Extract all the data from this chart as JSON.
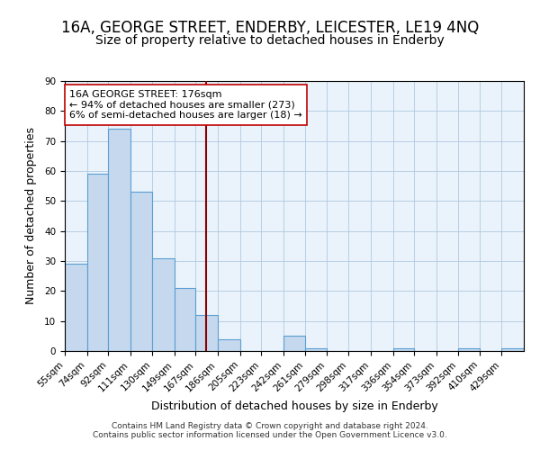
{
  "title1": "16A, GEORGE STREET, ENDERBY, LEICESTER, LE19 4NQ",
  "title2": "Size of property relative to detached houses in Enderby",
  "xlabel": "Distribution of detached houses by size in Enderby",
  "ylabel": "Number of detached properties",
  "bar_labels": [
    "55sqm",
    "74sqm",
    "92sqm",
    "111sqm",
    "130sqm",
    "149sqm",
    "167sqm",
    "186sqm",
    "205sqm",
    "223sqm",
    "242sqm",
    "261sqm",
    "279sqm",
    "298sqm",
    "317sqm",
    "336sqm",
    "354sqm",
    "373sqm",
    "392sqm",
    "410sqm",
    "429sqm"
  ],
  "bar_heights": [
    29,
    59,
    74,
    53,
    31,
    21,
    12,
    4,
    0,
    0,
    5,
    1,
    0,
    0,
    0,
    1,
    0,
    0,
    1,
    0,
    1
  ],
  "bin_edges": [
    55,
    74,
    92,
    111,
    130,
    149,
    167,
    186,
    205,
    223,
    242,
    261,
    279,
    298,
    317,
    336,
    354,
    373,
    392,
    410,
    429,
    448
  ],
  "bar_color": "#c5d8ed",
  "bar_edge_color": "#5a9fd4",
  "vline_x": 176,
  "vline_color": "#8b0000",
  "annotation_title": "16A GEORGE STREET: 176sqm",
  "annotation_line1": "← 94% of detached houses are smaller (273)",
  "annotation_line2": "6% of semi-detached houses are larger (18) →",
  "annotation_box_color": "#ffffff",
  "annotation_box_edge": "#c00000",
  "ylim": [
    0,
    90
  ],
  "yticks": [
    0,
    10,
    20,
    30,
    40,
    50,
    60,
    70,
    80,
    90
  ],
  "footer1": "Contains HM Land Registry data © Crown copyright and database right 2024.",
  "footer2": "Contains public sector information licensed under the Open Government Licence v3.0.",
  "background_color": "#eaf3fb",
  "fig_background": "#ffffff",
  "title1_fontsize": 12,
  "title2_fontsize": 10,
  "xlabel_fontsize": 9,
  "ylabel_fontsize": 9,
  "tick_fontsize": 7.5,
  "annotation_fontsize": 8,
  "footer_fontsize": 6.5
}
